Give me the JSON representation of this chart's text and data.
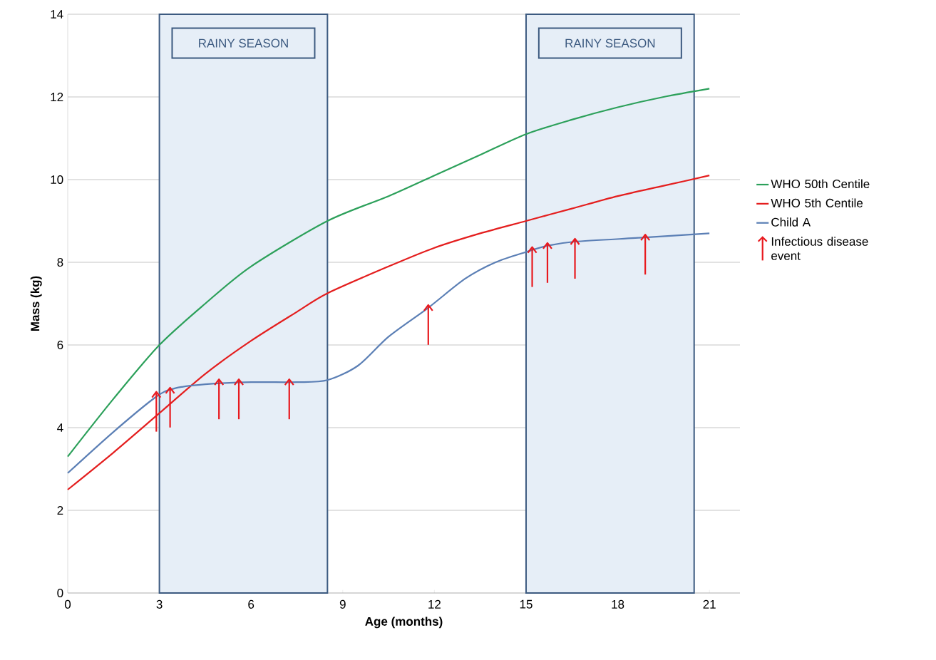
{
  "chart_data": {
    "type": "line",
    "xlabel": "Age (months)",
    "ylabel": "Mass (kg)",
    "xlim": [
      0,
      22
    ],
    "ylim": [
      0,
      14
    ],
    "xticks": [
      0,
      3,
      6,
      9,
      12,
      15,
      18,
      21
    ],
    "yticks": [
      0,
      2,
      4,
      6,
      8,
      10,
      12,
      14
    ],
    "grid": "y",
    "legend": "right",
    "line_style": "solid",
    "series": [
      {
        "name": "WHO 50th Centile",
        "color": "#2ca05a",
        "x": [
          0,
          1.5,
          3,
          4.5,
          6,
          8.5,
          10.5,
          12,
          13.5,
          15,
          16.5,
          18,
          19.5,
          21
        ],
        "values": [
          3.3,
          4.7,
          6.0,
          7.0,
          7.9,
          9.0,
          9.6,
          10.1,
          10.6,
          11.1,
          11.45,
          11.75,
          12.0,
          12.2
        ]
      },
      {
        "name": "WHO 5th Centile",
        "color": "#e41e1e",
        "x": [
          0,
          1.5,
          3,
          4.5,
          6,
          7.5,
          8.5,
          10.5,
          12,
          13.5,
          15,
          16.5,
          18,
          19.5,
          21
        ],
        "values": [
          2.5,
          3.4,
          4.35,
          5.3,
          6.1,
          6.8,
          7.25,
          7.9,
          8.35,
          8.7,
          9.0,
          9.3,
          9.6,
          9.85,
          10.1
        ]
      },
      {
        "name": "Child A",
        "color": "#5b7fb5",
        "x": [
          0,
          1.5,
          2.9,
          3.5,
          4.5,
          6,
          7.5,
          8.5,
          9.5,
          10.5,
          11.8,
          13,
          14,
          15,
          15.7,
          16.6,
          18.9,
          21
        ],
        "values": [
          2.9,
          3.9,
          4.75,
          4.95,
          5.05,
          5.1,
          5.1,
          5.15,
          5.5,
          6.2,
          6.9,
          7.6,
          8.0,
          8.25,
          8.4,
          8.5,
          8.6,
          8.7
        ]
      },
      {
        "name": "Infectious disease event",
        "type": "scatter",
        "color": "#e8191e",
        "x": [
          2.9,
          3.35,
          4.95,
          5.6,
          7.25,
          11.8,
          15.2,
          15.7,
          16.6,
          18.9
        ],
        "values": [
          4.8,
          4.9,
          5.1,
          5.1,
          5.1,
          6.9,
          8.3,
          8.4,
          8.5,
          8.6
        ]
      }
    ],
    "bands": [
      {
        "axis": "x",
        "from": 3,
        "to": 8.5,
        "label": "RAINY SEASON",
        "color": "#e6eef7"
      },
      {
        "axis": "x",
        "from": 15,
        "to": 20.5,
        "label": "RAINY SEASON",
        "color": "#e6eef7"
      }
    ]
  }
}
